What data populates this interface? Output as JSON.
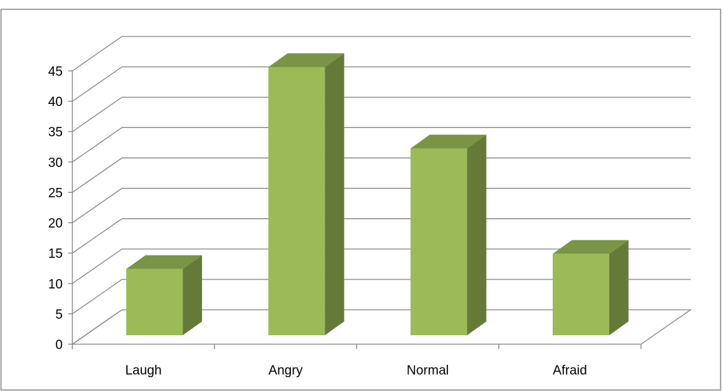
{
  "chart_data": {
    "type": "bar",
    "style": "3d-column",
    "categories": [
      "Laugh",
      "Angry",
      "Normal",
      "Afraid"
    ],
    "values": [
      11,
      44.5,
      31,
      13.5
    ],
    "title": "",
    "xlabel": "",
    "ylabel": "",
    "ylim": [
      0,
      45
    ],
    "yticks": [
      0,
      5,
      10,
      15,
      20,
      25,
      30,
      35,
      40,
      45
    ],
    "grid": true,
    "legend": "none",
    "colors": {
      "bar_front": "#9BBB59",
      "bar_top": "#7A9446",
      "bar_side": "#657A38",
      "gridline": "#868686",
      "frame_border": "#868686"
    }
  }
}
